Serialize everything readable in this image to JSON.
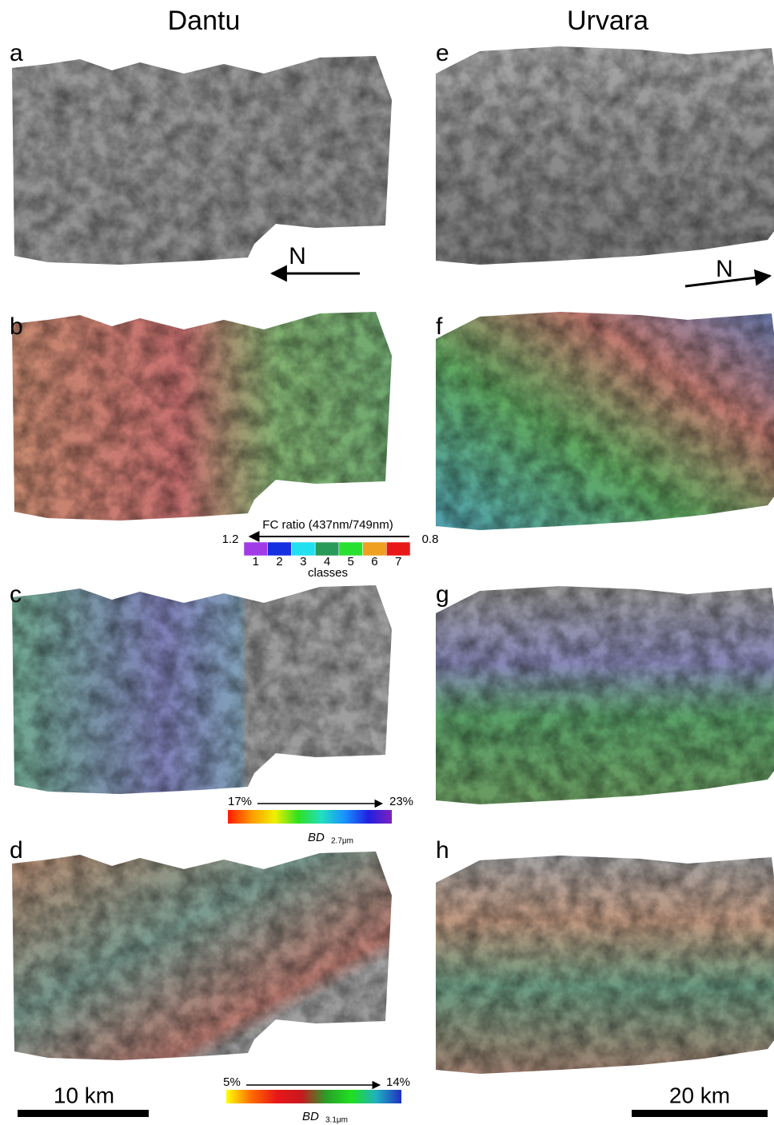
{
  "columns": [
    {
      "title": "Dantu",
      "panels": [
        "a",
        "b",
        "c",
        "d"
      ]
    },
    {
      "title": "Urvara",
      "panels": [
        "e",
        "f",
        "g",
        "h"
      ]
    }
  ],
  "north_labels": [
    "N",
    "N"
  ],
  "legends": {
    "fc_ratio": {
      "title": "FC ratio (437nm/749nm)",
      "left": "1.2",
      "right": "0.8",
      "axis_label": "classes",
      "classes": [
        "1",
        "2",
        "3",
        "4",
        "5",
        "6",
        "7"
      ],
      "colors": [
        "#a03be6",
        "#1530e0",
        "#22e0f0",
        "#2a9a5a",
        "#28e030",
        "#f0a020",
        "#e81818"
      ]
    },
    "bd_27": {
      "left": "17%",
      "right": "23%",
      "symbol": "BD",
      "subscript": "2.7μm",
      "colors": [
        "#ff1a00",
        "#ff9900",
        "#f0f000",
        "#30e020",
        "#20e0c0",
        "#1890ff",
        "#2020e0",
        "#8020c0"
      ]
    },
    "bd_31": {
      "left": "5%",
      "right": "14%",
      "symbol": "BD",
      "subscript": "3.1μm",
      "colors": [
        "#ffff00",
        "#ff6a00",
        "#e81818",
        "#c81820",
        "#28a028",
        "#20e020",
        "#20b0c0",
        "#2030c0"
      ]
    }
  },
  "scale_bars": [
    "10 km",
    "20 km"
  ]
}
